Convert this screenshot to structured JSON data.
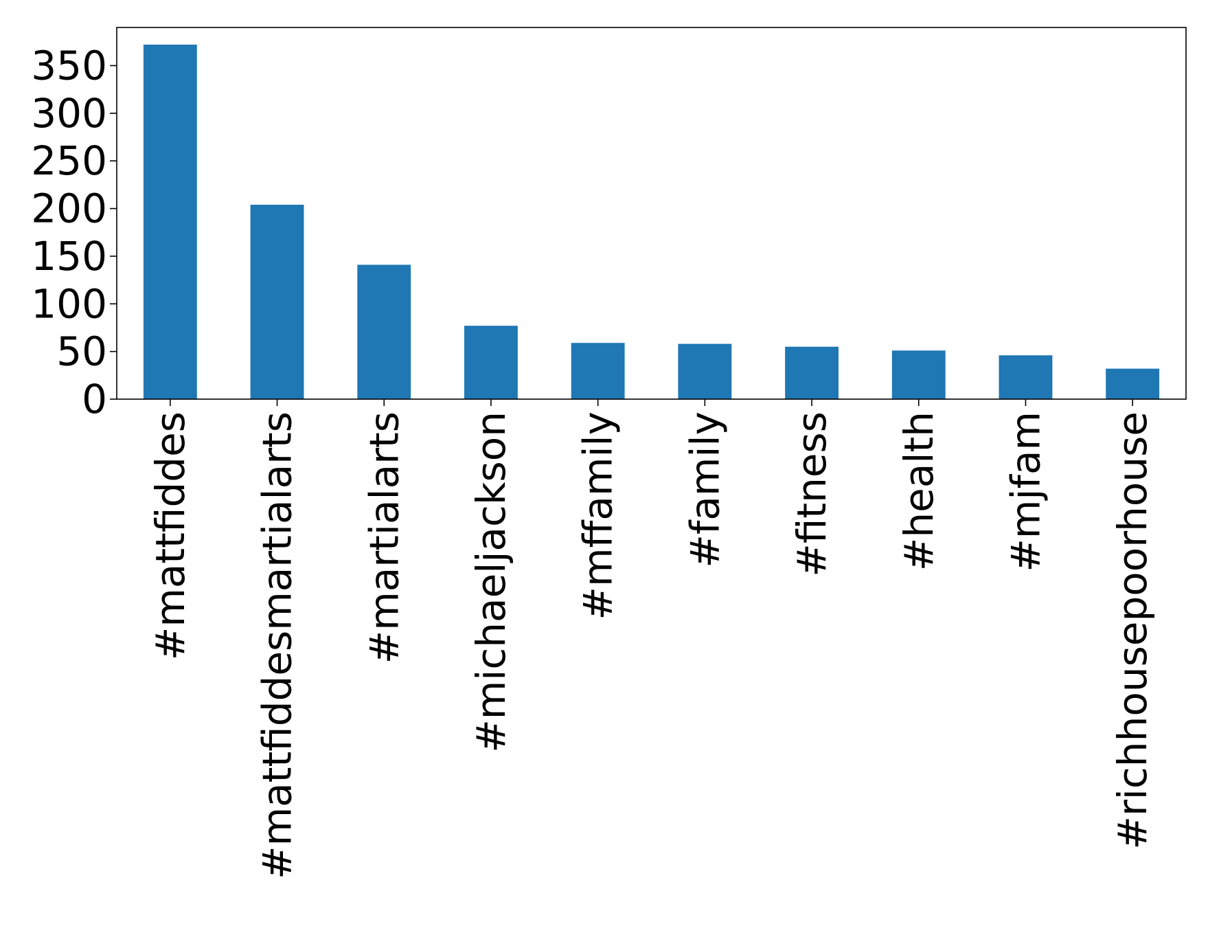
{
  "chart_data": {
    "type": "bar",
    "title": "",
    "xlabel": "",
    "ylabel": "",
    "categories": [
      "#mattfiddes",
      "#mattfiddesmartialarts",
      "#martialarts",
      "#michaeljackson",
      "#mffamily",
      "#family",
      "#fitness",
      "#health",
      "#mjfam",
      "#richhousepoorhouse"
    ],
    "values": [
      372,
      204,
      141,
      77,
      59,
      58,
      55,
      51,
      46,
      32
    ],
    "ylim": [
      0,
      390
    ],
    "yticks": [
      0,
      50,
      100,
      150,
      200,
      250,
      300,
      350
    ],
    "bar_color": "#1f77b4",
    "grid": false,
    "legend": "none"
  }
}
